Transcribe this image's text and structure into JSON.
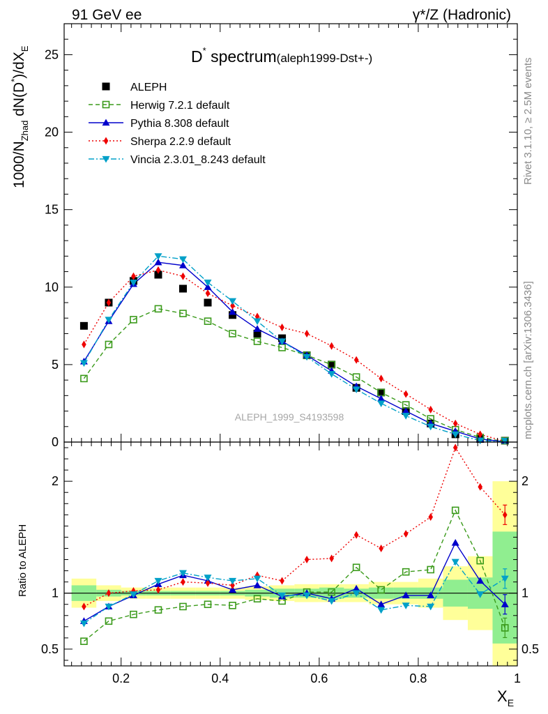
{
  "header": {
    "left": "91 GeV ee",
    "right": "γ*/Z (Hadronic)"
  },
  "side_labels": {
    "rivet": "Rivet 3.1.10, ≥ 2.5M events",
    "mcplots": "mcplots.cern.ch [arXiv:1306.3436]"
  },
  "reference_label": "ALEPH_1999_S4193598",
  "ratio_ylabel": "Ratio to ALEPH",
  "chart_data": [
    {
      "type": "line",
      "title_main": "D",
      "title_sup": "*",
      "title_rest": " spectrum",
      "title_small": "(aleph1999-Dst+-)",
      "ylabel_html": "1000/N_Zhad dN(D*)/dX_E",
      "xlabel": "X_E",
      "xlim": [
        0.085,
        1.0
      ],
      "ylim": [
        0,
        27
      ],
      "yticks": [
        0,
        5,
        10,
        15,
        20,
        25
      ],
      "x": [
        0.125,
        0.175,
        0.225,
        0.275,
        0.325,
        0.375,
        0.425,
        0.475,
        0.525,
        0.575,
        0.625,
        0.675,
        0.725,
        0.775,
        0.825,
        0.875,
        0.925,
        0.975
      ],
      "series": [
        {
          "name": "ALEPH",
          "color": "#000000",
          "marker": "square-filled",
          "line": "none",
          "values": [
            7.5,
            9.0,
            10.4,
            10.8,
            9.9,
            9.0,
            8.2,
            7.0,
            6.7,
            5.6,
            5.0,
            3.5,
            3.2,
            2.0,
            1.2,
            0.5,
            0.2,
            0.03
          ]
        },
        {
          "name": "Herwig 7.2.1 default",
          "color": "#3a9a1a",
          "marker": "square-open",
          "line": "dashed",
          "values": [
            4.1,
            6.3,
            7.9,
            8.6,
            8.3,
            7.8,
            7.0,
            6.5,
            6.1,
            5.6,
            5.0,
            4.2,
            3.2,
            2.4,
            1.5,
            0.8,
            0.3,
            0.02
          ]
        },
        {
          "name": "Pythia 8.308 default",
          "color": "#0000cc",
          "marker": "triangle-up",
          "line": "solid",
          "values": [
            5.2,
            7.8,
            10.2,
            11.6,
            11.4,
            10.0,
            8.4,
            7.3,
            6.5,
            5.6,
            4.6,
            3.6,
            2.8,
            2.0,
            1.2,
            0.7,
            0.2,
            0.02
          ]
        },
        {
          "name": "Sherpa 2.2.9 default",
          "color": "#ee0000",
          "marker": "diamond",
          "line": "dotted",
          "values": [
            6.3,
            9.0,
            10.7,
            11.1,
            10.7,
            9.6,
            8.8,
            8.1,
            7.4,
            7.0,
            6.2,
            5.3,
            4.1,
            3.1,
            2.1,
            1.2,
            0.5,
            0.04
          ]
        },
        {
          "name": "Vincia 2.3.01_8.243 default",
          "color": "#00a0c8",
          "marker": "triangle-down",
          "line": "dashdot",
          "values": [
            5.1,
            7.9,
            10.3,
            12.0,
            11.8,
            10.3,
            9.1,
            7.8,
            6.5,
            5.5,
            4.4,
            3.4,
            2.5,
            1.7,
            1.0,
            0.5,
            0.1,
            0.01
          ]
        }
      ]
    },
    {
      "type": "line",
      "ylabel": "Ratio to ALEPH",
      "xlabel": "X_E",
      "xlim": [
        0.085,
        1.0
      ],
      "ylim": [
        0.35,
        2.35
      ],
      "yticks": [
        0.5,
        1,
        2
      ],
      "xticks": [
        0.2,
        0.4,
        0.6,
        0.8,
        1
      ],
      "x": [
        0.125,
        0.175,
        0.225,
        0.275,
        0.325,
        0.375,
        0.425,
        0.475,
        0.525,
        0.575,
        0.625,
        0.675,
        0.725,
        0.775,
        0.825,
        0.875,
        0.925,
        0.975
      ],
      "band_edges": [
        0.1,
        0.15,
        0.2,
        0.25,
        0.3,
        0.35,
        0.4,
        0.45,
        0.5,
        0.55,
        0.6,
        0.65,
        0.7,
        0.75,
        0.8,
        0.85,
        0.9,
        0.95,
        1.0
      ],
      "band_inner": [
        [
          0.93,
          1.07
        ],
        [
          0.97,
          1.03
        ],
        [
          0.98,
          1.02
        ],
        [
          0.98,
          1.02
        ],
        [
          0.98,
          1.02
        ],
        [
          0.98,
          1.02
        ],
        [
          0.98,
          1.02
        ],
        [
          0.97,
          1.03
        ],
        [
          0.96,
          1.04
        ],
        [
          0.96,
          1.04
        ],
        [
          0.95,
          1.05
        ],
        [
          0.96,
          1.04
        ],
        [
          0.95,
          1.05
        ],
        [
          0.95,
          1.05
        ],
        [
          0.95,
          1.05
        ],
        [
          0.88,
          1.12
        ],
        [
          0.86,
          1.14
        ],
        [
          0.55,
          1.55
        ]
      ],
      "band_outer": [
        [
          0.87,
          1.13
        ],
        [
          0.93,
          1.07
        ],
        [
          0.95,
          1.05
        ],
        [
          0.95,
          1.05
        ],
        [
          0.95,
          1.05
        ],
        [
          0.95,
          1.05
        ],
        [
          0.95,
          1.05
        ],
        [
          0.94,
          1.06
        ],
        [
          0.93,
          1.07
        ],
        [
          0.92,
          1.08
        ],
        [
          0.92,
          1.08
        ],
        [
          0.92,
          1.08
        ],
        [
          0.9,
          1.1
        ],
        [
          0.9,
          1.1
        ],
        [
          0.87,
          1.13
        ],
        [
          0.76,
          1.24
        ],
        [
          0.67,
          1.33
        ],
        [
          0.35,
          2.0
        ]
      ],
      "series": [
        {
          "name": "Herwig 7.2.1 default",
          "color": "#3a9a1a",
          "marker": "square-open",
          "line": "dashed",
          "values": [
            0.57,
            0.75,
            0.81,
            0.85,
            0.88,
            0.9,
            0.89,
            0.95,
            0.93,
            1.01,
            1.01,
            1.23,
            1.03,
            1.19,
            1.21,
            1.74,
            1.29,
            0.69
          ]
        },
        {
          "name": "Pythia 8.308 default",
          "color": "#0000cc",
          "marker": "triangle-up",
          "line": "solid",
          "values": [
            0.75,
            0.88,
            0.98,
            1.08,
            1.16,
            1.11,
            1.03,
            1.07,
            0.97,
            1.0,
            0.95,
            1.04,
            0.9,
            0.98,
            0.98,
            1.45,
            1.11,
            0.9
          ]
        },
        {
          "name": "Sherpa 2.2.9 default",
          "color": "#ee0000",
          "marker": "diamond",
          "line": "dotted",
          "values": [
            0.88,
            1.0,
            1.02,
            1.03,
            1.1,
            1.09,
            1.07,
            1.16,
            1.11,
            1.3,
            1.31,
            1.52,
            1.4,
            1.53,
            1.68,
            2.3,
            1.95,
            1.7
          ]
        },
        {
          "name": "Vincia 2.3.01_8.243 default",
          "color": "#00a0c8",
          "marker": "triangle-down",
          "line": "dashdot",
          "values": [
            0.73,
            0.88,
            0.99,
            1.11,
            1.18,
            1.14,
            1.11,
            1.13,
            0.98,
            0.98,
            0.93,
            1.0,
            0.85,
            0.89,
            0.88,
            1.28,
            0.99,
            1.13
          ]
        }
      ]
    }
  ]
}
